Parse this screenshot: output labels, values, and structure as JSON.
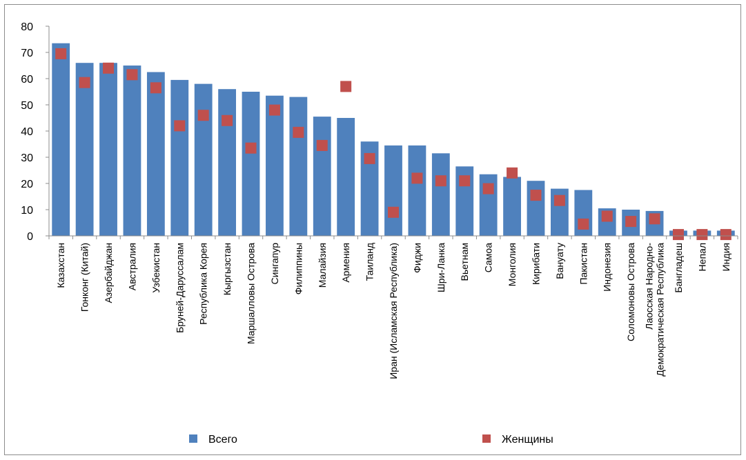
{
  "chart_data": {
    "type": "bar",
    "categories": [
      "Казахстан",
      "Гонконг (Китай)",
      "Азербайджан",
      "Австралия",
      "Узбекистан",
      "Бруней-Даруссалам",
      "Республика Корея",
      "Кыргызстан",
      "Маршалловы Острова",
      "Сингапур",
      "Филиппины",
      "Малайзия",
      "Армения",
      "Таиланд",
      "Иран (Исламская Республика)",
      "Фиджи",
      "Шри-Ланка",
      "Вьетнам",
      "Самоа",
      "Монголия",
      "Кирибати",
      "Вануату",
      "Пакистан",
      "Индонезия",
      "Соломоновы Острова",
      "Лаосская Народно-Демократическая Республика",
      "Бангладеш",
      "Непал",
      "Индия"
    ],
    "category_display": [
      "Казахстан",
      "Гонконг (Китай)",
      "Азербайджан",
      "Австралия",
      "Узбекистан",
      "Бруней-Даруссалам",
      "Республика Корея",
      "Кыргызстан",
      "Маршалловы Острова",
      "Сингапур",
      "Филиппины",
      "Малайзия",
      "Армения",
      "Таиланд",
      "Иран (Исламская Республика)",
      "Фиджи",
      "Шри-Ланка",
      "Вьетнам",
      "Самоа",
      "Монголия",
      "Кирибати",
      "Вануату",
      "Пакистан",
      "Индонезия",
      "Соломоновы Острова",
      [
        "Лаосская Народно-",
        "Демократическая Республика"
      ],
      "Бангладеш",
      "Непал",
      "Индия"
    ],
    "series": [
      {
        "name": "Всего",
        "kind": "bar",
        "color": "#4f81bd",
        "values": [
          73.5,
          66,
          66,
          65,
          62.5,
          59.5,
          58,
          56,
          55,
          53.5,
          53,
          45.5,
          45,
          36,
          34.5,
          34.5,
          31.5,
          26.5,
          23.5,
          22.5,
          21,
          18,
          17.5,
          10.5,
          10,
          9.5,
          2,
          2,
          2
        ]
      },
      {
        "name": "Женщины",
        "kind": "marker",
        "color": "#c0504d",
        "values": [
          69.5,
          58.5,
          64,
          61.5,
          56.5,
          42,
          46,
          44,
          33.5,
          48,
          39.5,
          34.5,
          57,
          29.5,
          9,
          22,
          21,
          21,
          18,
          24,
          15.5,
          13.5,
          4.5,
          7.5,
          5.5,
          6.5,
          0.5,
          0.5,
          0.5
        ]
      }
    ],
    "ylim": [
      0,
      80
    ],
    "yticks": [
      "0",
      "10",
      "20",
      "30",
      "40",
      "50",
      "60",
      "70",
      "80"
    ],
    "grid": false,
    "legend": "bottom"
  }
}
